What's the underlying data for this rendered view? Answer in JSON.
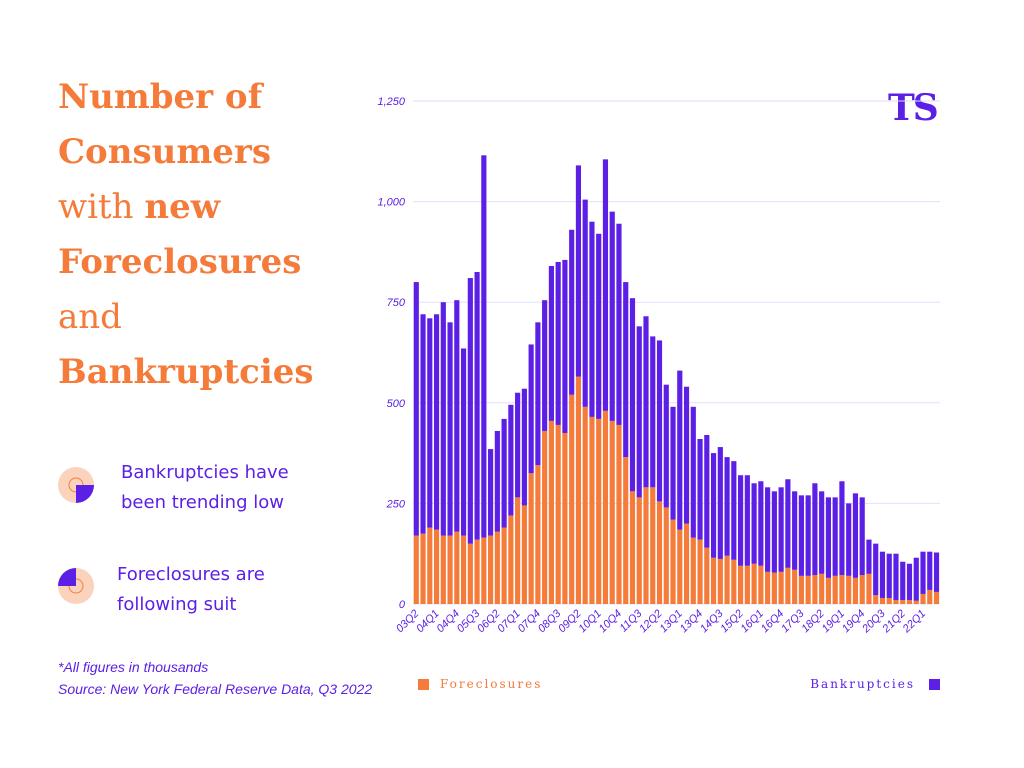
{
  "chart_data": {
    "type": "bar",
    "stacked": true,
    "title_parts": [
      "Number of",
      "Consumers",
      "with",
      "new",
      "Foreclosures",
      "and",
      "Bankruptcies"
    ],
    "notes": [
      [
        "Bankruptcies have",
        "been trending low"
      ],
      [
        "Foreclosures are",
        "following suit"
      ]
    ],
    "footnotes": [
      "*All figures in thousands",
      "Source: New York Federal Reserve Data, Q3 2022"
    ],
    "logo": "TS",
    "categories": [
      "03Q2",
      null,
      null,
      "04Q1",
      null,
      null,
      "04Q4",
      null,
      null,
      "05Q3",
      null,
      null,
      "06Q2",
      null,
      null,
      "07Q1",
      null,
      null,
      "07Q4",
      null,
      null,
      "08Q3",
      null,
      null,
      "09Q2",
      null,
      null,
      "10Q1",
      null,
      null,
      "10Q4",
      null,
      null,
      "11Q3",
      null,
      null,
      "12Q2",
      null,
      null,
      "13Q1",
      null,
      null,
      "13Q4",
      null,
      null,
      "14Q3",
      null,
      null,
      "15Q2",
      null,
      null,
      "16Q1",
      null,
      null,
      "16Q4",
      null,
      null,
      "17Q3",
      null,
      null,
      "18Q2",
      null,
      null,
      "19Q1",
      null,
      null,
      "19Q4",
      null,
      null,
      "20Q3",
      null,
      null,
      "21Q2",
      null,
      null,
      "22Q1",
      null,
      null
    ],
    "series": [
      {
        "name": "Foreclosures",
        "color": "#f47b3a",
        "values": [
          170,
          175,
          190,
          185,
          170,
          170,
          180,
          170,
          150,
          160,
          165,
          170,
          180,
          190,
          220,
          265,
          245,
          325,
          345,
          430,
          455,
          445,
          425,
          520,
          565,
          490,
          465,
          460,
          480,
          455,
          445,
          365,
          280,
          265,
          290,
          290,
          255,
          240,
          210,
          185,
          200,
          165,
          160,
          140,
          115,
          112,
          120,
          110,
          95,
          95,
          100,
          95,
          80,
          78,
          80,
          90,
          85,
          70,
          70,
          72,
          75,
          65,
          70,
          72,
          70,
          65,
          72,
          75,
          22,
          15,
          15,
          10,
          10,
          10,
          8,
          25,
          35,
          30
        ]
      },
      {
        "name": "Bankruptcies",
        "color": "#5b1fe6",
        "values": [
          630,
          545,
          520,
          535,
          580,
          530,
          575,
          465,
          660,
          665,
          950,
          215,
          250,
          270,
          275,
          260,
          290,
          320,
          355,
          325,
          385,
          405,
          430,
          410,
          525,
          515,
          485,
          460,
          625,
          520,
          500,
          435,
          480,
          425,
          425,
          375,
          400,
          305,
          280,
          395,
          340,
          325,
          250,
          280,
          260,
          278,
          245,
          245,
          225,
          225,
          200,
          210,
          210,
          202,
          210,
          220,
          195,
          200,
          200,
          228,
          205,
          200,
          195,
          233,
          180,
          210,
          193,
          85,
          128,
          115,
          110,
          115,
          95,
          90,
          107,
          105,
          95,
          98
        ]
      }
    ],
    "ylim": [
      0,
      1250
    ],
    "yticks": [
      0,
      250,
      500,
      750,
      {
        "value": 1000,
        "label": "1,000"
      },
      {
        "value": 1250,
        "label": "1,250"
      }
    ],
    "grid": true
  }
}
